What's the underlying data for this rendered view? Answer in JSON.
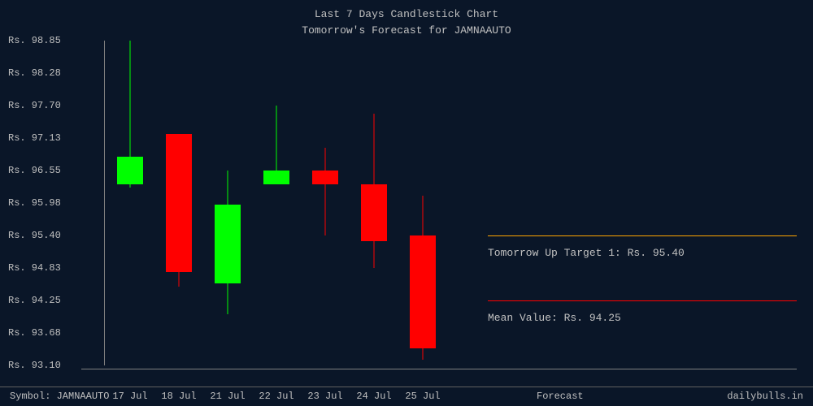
{
  "title": {
    "line1": "Last 7 Days Candlestick Chart",
    "line2": "Tomorrow's Forecast for JAMNAAUTO"
  },
  "colors": {
    "background": "#0a1628",
    "text": "#c0c0c0",
    "axis": "#808080",
    "up": "#00ff00",
    "down": "#ff0000",
    "target_line": "#ffa500",
    "mean_line": "#ff0000"
  },
  "chart": {
    "type": "candlestick",
    "y_prefix": "Rs. ",
    "ylim": [
      93.1,
      98.85
    ],
    "yticks": [
      98.85,
      98.28,
      97.7,
      97.13,
      96.55,
      95.98,
      95.4,
      94.83,
      94.25,
      93.68,
      93.1
    ],
    "xticks": [
      "17 Jul",
      "18 Jul",
      "21 Jul",
      "22 Jul",
      "23 Jul",
      "24 Jul",
      "25 Jul"
    ],
    "candle_width": 32,
    "candles": [
      {
        "x": 0,
        "open": 96.3,
        "high": 98.85,
        "low": 96.25,
        "close": 96.8,
        "type": "up"
      },
      {
        "x": 1,
        "open": 97.2,
        "high": 97.2,
        "low": 94.5,
        "close": 94.75,
        "type": "down"
      },
      {
        "x": 2,
        "open": 94.55,
        "high": 96.55,
        "low": 94.0,
        "close": 95.95,
        "type": "up"
      },
      {
        "x": 3,
        "open": 96.3,
        "high": 97.7,
        "low": 96.3,
        "close": 96.55,
        "type": "up"
      },
      {
        "x": 4,
        "open": 96.55,
        "high": 96.95,
        "low": 95.4,
        "close": 96.3,
        "type": "down"
      },
      {
        "x": 5,
        "open": 96.3,
        "high": 97.55,
        "low": 94.83,
        "close": 95.3,
        "type": "down"
      },
      {
        "x": 6,
        "open": 95.4,
        "high": 96.1,
        "low": 93.2,
        "close": 93.4,
        "type": "down"
      }
    ]
  },
  "forecast": {
    "target": {
      "label": "Tomorrow Up Target 1: Rs. 95.40",
      "value": 95.4,
      "color": "#ffa500"
    },
    "mean": {
      "label": "Mean Value: Rs. 94.25",
      "value": 94.25,
      "color": "#ff0000"
    }
  },
  "footer": {
    "symbol_label": "Symbol: JAMNAAUTO",
    "forecast_label": "Forecast",
    "site": "dailybulls.in"
  }
}
